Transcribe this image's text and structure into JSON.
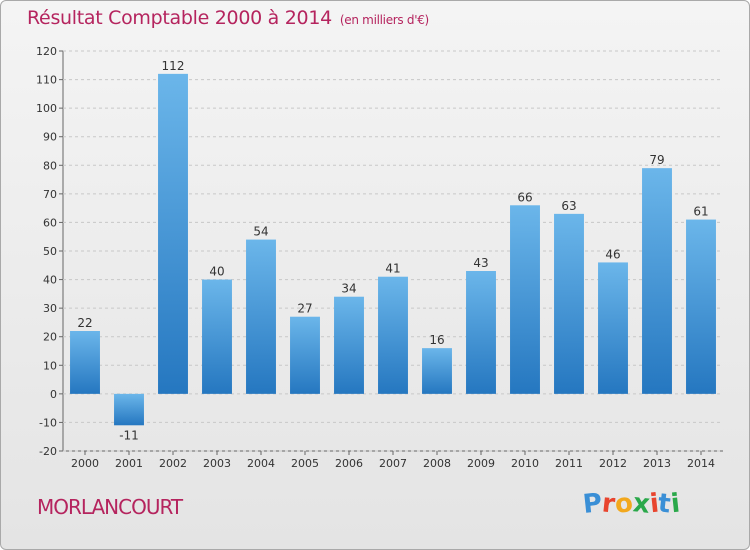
{
  "title": "Résultat Comptable 2000 à 2014",
  "subtitle": "(en milliers d'€)",
  "commune": "MORLANCOURT",
  "brand": {
    "letters": [
      "P",
      "r",
      "o",
      "x",
      "i",
      "t",
      "i"
    ],
    "colors": [
      "#3a8fd6",
      "#e8442e",
      "#f2a81d",
      "#2aa84a",
      "#e8442e",
      "#3a8fd6",
      "#2aa84a"
    ]
  },
  "colors": {
    "title": "#b5245e",
    "bar_top": "#6bb6ea",
    "bar_bottom": "#2577c0",
    "grid": "#c8c8c8"
  },
  "chart_data": {
    "type": "bar",
    "title": "Résultat Comptable 2000 à 2014",
    "subtitle": "(en milliers d'€)",
    "xlabel": "",
    "ylabel": "",
    "categories": [
      "2000",
      "2001",
      "2002",
      "2003",
      "2004",
      "2005",
      "2006",
      "2007",
      "2008",
      "2009",
      "2010",
      "2011",
      "2012",
      "2013",
      "2014"
    ],
    "values": [
      22,
      -11,
      112,
      40,
      54,
      27,
      34,
      41,
      16,
      43,
      66,
      63,
      46,
      79,
      61
    ],
    "ylim": [
      -20,
      120
    ],
    "yticks": [
      "-20",
      "-10",
      "0",
      "10",
      "20",
      "30",
      "40",
      "50",
      "60",
      "70",
      "80",
      "90",
      "100",
      "110",
      "120"
    ],
    "data_labels": [
      "22",
      "-11",
      "112",
      "40",
      "54",
      "27",
      "34",
      "41",
      "16",
      "43",
      "66",
      "63",
      "46",
      "79",
      "61"
    ],
    "grid": true,
    "legend": "none"
  }
}
